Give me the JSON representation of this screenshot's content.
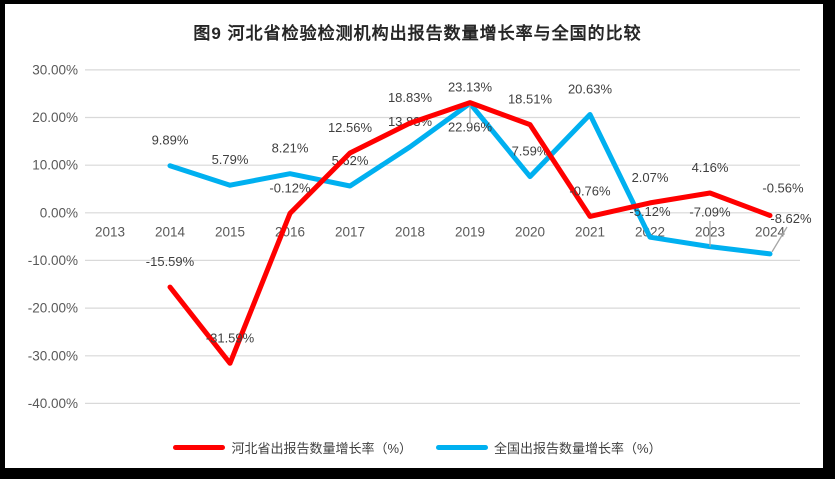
{
  "title": "图9 河北省检验检测机构出报告数量增长率与全国的比较",
  "colors": {
    "hebei": "#FF0000",
    "national": "#00B0F0",
    "grid": "#D9D9D9",
    "axis_label": "#595959",
    "data_label": "#404040",
    "leader": "#A6A6A6",
    "frame": "#000000"
  },
  "chart_data": {
    "type": "line",
    "title": "图9 河北省检验检测机构出报告数量增长率与全国的比较",
    "categories": [
      "2013",
      "2014",
      "2015",
      "2016",
      "2017",
      "2018",
      "2019",
      "2020",
      "2021",
      "2022",
      "2023",
      "2024"
    ],
    "series": [
      {
        "name": "河北省出报告数量增长率（%）",
        "color": "#FF0000",
        "values": [
          null,
          -15.59,
          -31.59,
          -0.12,
          12.56,
          18.83,
          23.13,
          18.51,
          -0.76,
          2.07,
          4.16,
          -0.56
        ],
        "labels": [
          "",
          "-15.59%",
          "-31.59%",
          "-0.12%",
          "12.56%",
          "18.83%",
          "23.13%",
          "18.51%",
          "-0.76%",
          "2.07%",
          "4.16%",
          "-0.56%"
        ]
      },
      {
        "name": "全国出报告数量增长率（%）",
        "color": "#00B0F0",
        "values": [
          null,
          9.89,
          5.79,
          8.21,
          5.62,
          13.83,
          22.96,
          7.59,
          20.63,
          -5.12,
          -7.09,
          -8.62
        ],
        "labels": [
          "",
          "9.89%",
          "5.79%",
          "8.21%",
          "5.62%",
          "13.83%",
          "22.96%",
          "7.59%",
          "20.63%",
          "-5.12%",
          "-7.09%",
          "-8.62%"
        ]
      }
    ],
    "ytick_values": [
      30,
      20,
      10,
      0,
      -10,
      -20,
      -30,
      -40
    ],
    "ytick_labels": [
      "30.00%",
      "20.00%",
      "10.00%",
      "0.00%",
      "-10.00%",
      "-20.00%",
      "-30.00%",
      "-40.00%"
    ],
    "ylim": [
      -40,
      30
    ],
    "xlabel": "",
    "ylabel": "",
    "grid": true,
    "legend_position": "bottom"
  }
}
